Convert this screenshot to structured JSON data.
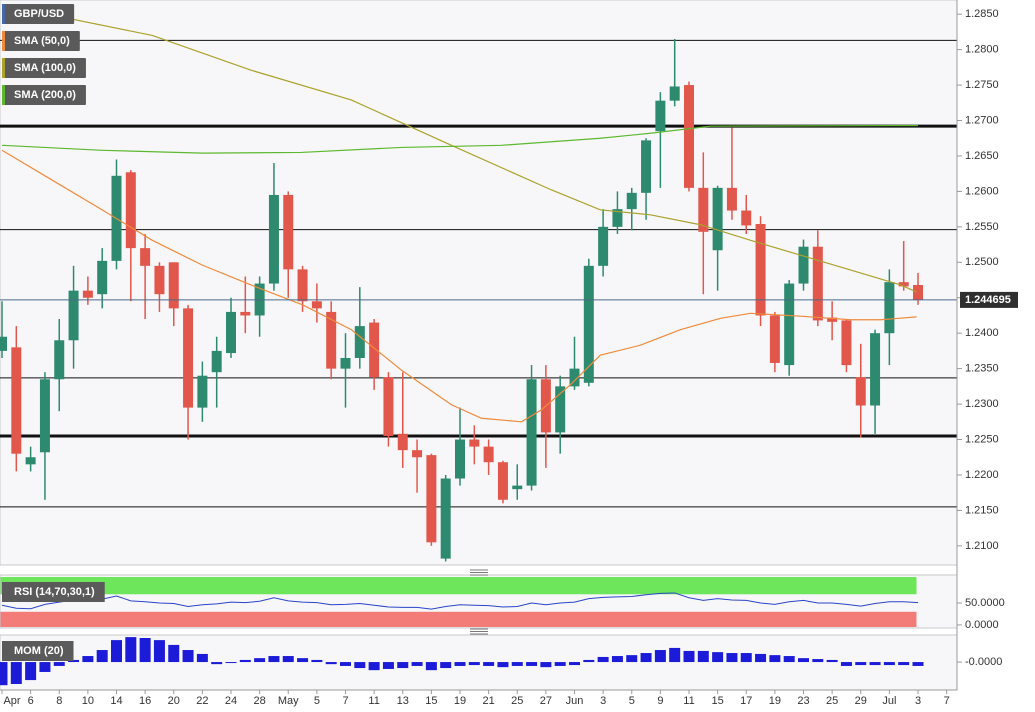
{
  "chart_data": [
    {
      "type": "candlestick",
      "title": "GBP/USD",
      "categories": [
        "Apr",
        null,
        "6",
        null,
        "8",
        null,
        "10",
        null,
        "14",
        null,
        "16",
        null,
        "20",
        null,
        "22",
        null,
        "24",
        null,
        "28",
        null,
        "May",
        null,
        "5",
        null,
        "7",
        null,
        "11",
        null,
        "13",
        null,
        "15",
        null,
        "19",
        null,
        "21",
        null,
        "25",
        null,
        "27",
        null,
        "Jun",
        null,
        "3",
        null,
        "5",
        null,
        "9",
        null,
        "11",
        null,
        "15",
        null,
        "17",
        null,
        "19",
        null,
        "23",
        null,
        "25",
        null,
        "29",
        null,
        "Jul",
        null,
        "3",
        null,
        "7"
      ],
      "open": [
        1.2375,
        1.238,
        1.2215,
        1.2232,
        1.2335,
        1.239,
        1.246,
        1.2455,
        1.2502,
        1.2627,
        1.252,
        1.2495,
        1.25,
        1.2435,
        1.2295,
        1.2345,
        1.2372,
        1.243,
        1.2425,
        1.247,
        1.2595,
        1.249,
        1.2445,
        1.243,
        1.235,
        1.2365,
        1.2415,
        1.2338,
        1.2258,
        1.2235,
        1.2228,
        1.2082,
        1.2195,
        1.225,
        1.224,
        1.2218,
        1.218,
        1.2185,
        1.2335,
        1.226,
        1.2325,
        1.233,
        1.2495,
        1.255,
        1.2575,
        1.2598,
        1.2685,
        1.2728,
        1.275,
        1.2605,
        1.2517,
        1.2605,
        1.2573,
        1.2554,
        1.2425,
        1.2355,
        1.247,
        1.2522,
        1.2422,
        1.2418,
        1.2338,
        1.2298,
        1.24,
        1.2472,
        1.2468,
        null,
        null
      ],
      "high": [
        1.2445,
        1.241,
        1.224,
        1.2345,
        1.242,
        1.2495,
        1.248,
        1.252,
        1.2645,
        1.263,
        1.254,
        1.25,
        1.25,
        1.244,
        1.236,
        1.2395,
        1.245,
        1.248,
        1.248,
        1.264,
        1.26,
        1.2495,
        1.247,
        1.2445,
        1.24,
        1.2465,
        1.242,
        1.2345,
        1.2345,
        1.225,
        1.223,
        1.22,
        1.2295,
        1.227,
        1.225,
        1.222,
        1.2215,
        1.2355,
        1.2355,
        1.234,
        1.2395,
        1.2505,
        1.2575,
        1.26,
        1.2605,
        1.2675,
        1.274,
        1.2815,
        1.2755,
        1.2655,
        1.2608,
        1.269,
        1.2595,
        1.2565,
        1.243,
        1.2475,
        1.2532,
        1.2545,
        1.2445,
        1.242,
        1.2385,
        1.2405,
        1.249,
        1.253,
        1.2485,
        null,
        null
      ],
      "low": [
        1.2365,
        1.2205,
        1.2205,
        1.2165,
        1.229,
        1.235,
        1.244,
        1.2435,
        1.249,
        1.2445,
        1.242,
        1.243,
        1.241,
        1.225,
        1.2275,
        1.2295,
        1.2365,
        1.24,
        1.2395,
        1.246,
        1.245,
        1.243,
        1.2415,
        1.2335,
        1.2295,
        1.235,
        1.232,
        1.224,
        1.221,
        1.2175,
        1.21,
        1.2078,
        1.2185,
        1.2215,
        1.22,
        1.216,
        1.2165,
        1.2178,
        1.221,
        1.223,
        1.232,
        1.2325,
        1.248,
        1.254,
        1.2545,
        1.256,
        1.2605,
        1.272,
        1.26,
        1.2455,
        1.246,
        1.256,
        1.254,
        1.241,
        1.2345,
        1.234,
        1.246,
        1.241,
        1.239,
        1.2345,
        1.2253,
        1.2258,
        1.2355,
        1.246,
        1.244,
        null,
        null
      ],
      "close": [
        1.2395,
        1.223,
        1.2225,
        1.2335,
        1.239,
        1.246,
        1.245,
        1.2502,
        1.2622,
        1.252,
        1.2495,
        1.2455,
        1.2435,
        1.2295,
        1.234,
        1.2375,
        1.243,
        1.2425,
        1.247,
        1.2595,
        1.249,
        1.2445,
        1.2435,
        1.235,
        1.2365,
        1.241,
        1.2338,
        1.2255,
        1.2235,
        1.2225,
        1.2105,
        1.2195,
        1.225,
        1.224,
        1.2218,
        1.2165,
        1.2185,
        1.2335,
        1.226,
        1.2325,
        1.235,
        1.2495,
        1.255,
        1.2575,
        1.2598,
        1.2672,
        1.2728,
        1.2748,
        1.2605,
        1.2543,
        1.2605,
        1.2573,
        1.2552,
        1.2425,
        1.2358,
        1.247,
        1.2522,
        1.2418,
        1.2416,
        1.2355,
        1.2298,
        1.24,
        1.2472,
        1.2466,
        1.2447,
        null,
        null
      ],
      "up_color": "#2d8a6e",
      "down_color": "#e2574c",
      "series": [
        {
          "name": "SMA (50,0)",
          "color": "#ee8a3c",
          "x": [
            0,
            3.5,
            7,
            10.5,
            14,
            17.4,
            21,
            24.4,
            27.9,
            31.4,
            33.5,
            36.3,
            37.7,
            39.7,
            41.8,
            44.6,
            47.4,
            50.2,
            52.3,
            55.8,
            59.3,
            61.4,
            63.9
          ],
          "values": [
            1.2658,
            1.2616,
            1.2574,
            1.2531,
            1.2496,
            1.2468,
            1.244,
            1.2405,
            1.2348,
            1.2299,
            1.228,
            1.2275,
            1.2292,
            1.2327,
            1.2369,
            1.2383,
            1.2405,
            1.2421,
            1.2428,
            1.2424,
            1.2419,
            1.2419,
            1.2423
          ]
        },
        {
          "name": "SMA (100,0)",
          "color": "#aaa22c",
          "x": [
            0,
            10.5,
            17.4,
            24.4,
            31.4,
            38.4,
            41.8,
            45.3,
            48.8,
            52.3,
            55.8,
            59.3,
            62.8,
            63.9
          ],
          "values": [
            1.2863,
            1.282,
            1.2771,
            1.2729,
            1.2665,
            1.2602,
            1.2574,
            1.2567,
            1.2553,
            1.2531,
            1.251,
            1.2489,
            1.2468,
            1.2458
          ]
        },
        {
          "name": "SMA (200,0)",
          "color": "#5cb82f",
          "x": [
            0,
            7,
            14,
            20.9,
            27.9,
            34.9,
            41.8,
            45.3,
            49.5,
            64
          ],
          "values": [
            1.2665,
            1.2658,
            1.2654,
            1.2655,
            1.2662,
            1.2665,
            1.2675,
            1.2682,
            1.2692,
            1.2693
          ]
        }
      ],
      "levels": [
        {
          "value": 1.2813,
          "style": "thin"
        },
        {
          "value": 1.2692,
          "style": "thick"
        },
        {
          "value": 1.2546,
          "style": "thin"
        },
        {
          "value": 1.2337,
          "style": "thin"
        },
        {
          "value": 1.2255,
          "style": "thick"
        },
        {
          "value": 1.2155,
          "style": "thin"
        }
      ],
      "last_price": 1.244695,
      "ylim": [
        1.2073,
        1.287
      ],
      "yticks": [
        {
          "value": 1.285,
          "label": "1.2850"
        },
        {
          "value": 1.28,
          "label": "1.2800"
        },
        {
          "value": 1.275,
          "label": "1.2750"
        },
        {
          "value": 1.27,
          "label": "1.2700"
        },
        {
          "value": 1.265,
          "label": "1.2650"
        },
        {
          "value": 1.26,
          "label": "1.2600"
        },
        {
          "value": 1.255,
          "label": "1.2550"
        },
        {
          "value": 1.25,
          "label": "1.2500"
        },
        {
          "value": 1.245,
          "label": "1.2450"
        },
        {
          "value": 1.24,
          "label": "1.2400"
        },
        {
          "value": 1.235,
          "label": "1.2350"
        },
        {
          "value": 1.23,
          "label": "1.2300"
        },
        {
          "value": 1.225,
          "label": "1.2250"
        },
        {
          "value": 1.22,
          "label": "1.2200"
        },
        {
          "value": 1.215,
          "label": "1.2150"
        },
        {
          "value": 1.21,
          "label": "1.2100"
        }
      ]
    },
    {
      "type": "line",
      "title": "RSI (14,70,30,1)",
      "color": "#2a44c8",
      "values": [
        45,
        38,
        37,
        47,
        52,
        57,
        56,
        59,
        66,
        55,
        53,
        50,
        49,
        42,
        46,
        48,
        52,
        51,
        54,
        62,
        55,
        52,
        51,
        46,
        47,
        49,
        45,
        41,
        40,
        40,
        36,
        42,
        46,
        45,
        44,
        41,
        42,
        50,
        46,
        50,
        52,
        60,
        63,
        64,
        65,
        69,
        72,
        73,
        62,
        56,
        60,
        57,
        56,
        50,
        47,
        53,
        56,
        50,
        50,
        47,
        43,
        49,
        53,
        53,
        51
      ],
      "overbought": 70,
      "oversold": 30,
      "overbought_color": "#6ee65c",
      "oversold_color": "#f47c78",
      "ylim": [
        -7,
        114
      ],
      "yticks": [
        {
          "value": 50,
          "label": "50.0000"
        },
        {
          "value": 0,
          "label": "0.0000"
        }
      ]
    },
    {
      "type": "bar",
      "title": "MOM (20)",
      "color": "#1c1cd8",
      "values": [
        -0.0077,
        -0.0073,
        -0.006,
        -0.0033,
        -0.0013,
        0.0007,
        0.002,
        0.004,
        0.0073,
        0.0083,
        0.008,
        0.0073,
        0.0057,
        0.004,
        0.0027,
        -0.0007,
        -0.0003,
        0.0007,
        0.0013,
        0.002,
        0.002,
        0.0013,
        0.0007,
        -0.0007,
        -0.0013,
        -0.002,
        -0.0027,
        -0.0023,
        -0.002,
        -0.0013,
        -0.0027,
        -0.002,
        -0.0013,
        -0.001,
        -0.0013,
        -0.0017,
        -0.0013,
        -0.0013,
        -0.0017,
        -0.0013,
        -0.001,
        0.0007,
        0.0017,
        0.002,
        0.0023,
        0.003,
        0.004,
        0.0047,
        0.0037,
        0.0037,
        0.0033,
        0.003,
        0.003,
        0.0027,
        0.0023,
        0.002,
        0.0013,
        0.001,
        0.0007,
        -0.0013,
        -0.001,
        -0.001,
        -0.001,
        -0.001,
        -0.0013
      ],
      "ylim": [
        -0.0093,
        0.009
      ],
      "yticks": [
        {
          "value": 0,
          "label": "-0.0000"
        }
      ]
    }
  ]
}
